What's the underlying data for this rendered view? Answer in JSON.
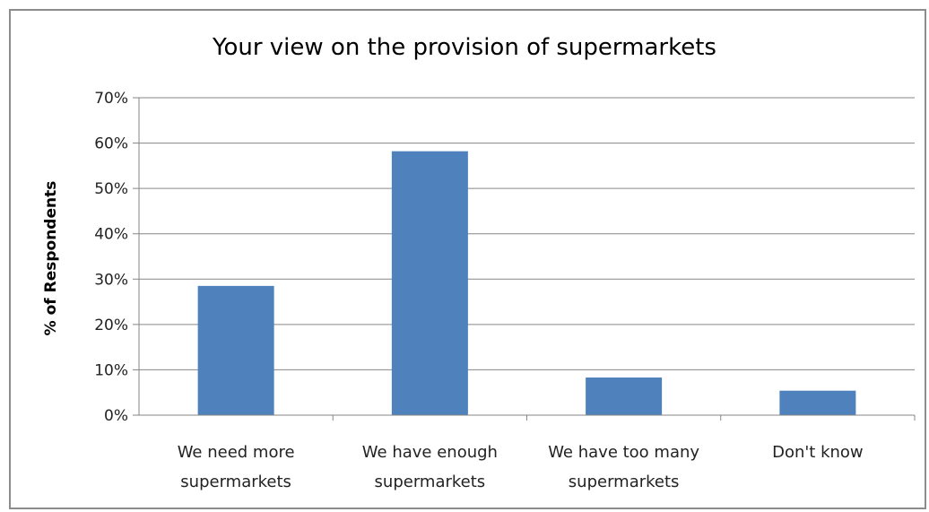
{
  "chart_data": {
    "type": "bar",
    "title": "Your view on the provision of supermarkets",
    "ylabel": "% of Respondents",
    "xlabel": "",
    "categories": [
      [
        "We need more",
        "supermarkets"
      ],
      [
        "We have enough",
        "supermarkets"
      ],
      [
        "We have too many",
        "supermarkets"
      ],
      [
        "Don't know"
      ]
    ],
    "values": [
      28.5,
      58.2,
      8.3,
      5.4
    ],
    "ylim": [
      0,
      70
    ],
    "yticks": [
      "0%",
      "10%",
      "20%",
      "30%",
      "40%",
      "50%",
      "60%",
      "70%"
    ],
    "grid": true,
    "legend": "none",
    "colors": {
      "bar": "#4f81bd",
      "grid": "#868686",
      "axis": "#868686"
    }
  }
}
